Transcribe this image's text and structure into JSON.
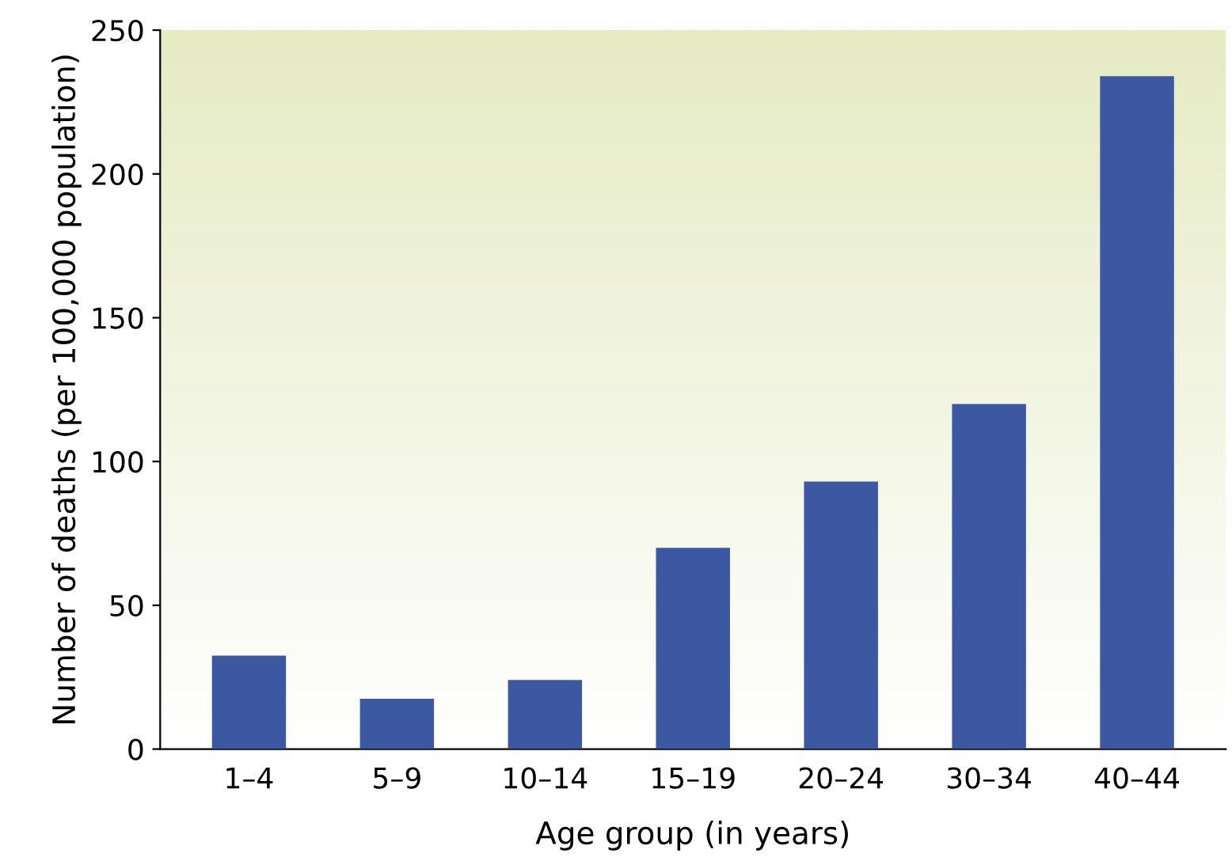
{
  "chart_data": {
    "type": "bar",
    "xlabel": "Age group (in years)",
    "ylabel": "Number of deaths (per 100,000 population)",
    "categories": [
      "1–4",
      "5–9",
      "10–14",
      "15–19",
      "20–24",
      "30–34",
      "40–44"
    ],
    "values": [
      32.5,
      17.5,
      24,
      70,
      93,
      120,
      234
    ],
    "color": "#3d58a3",
    "ylim": [
      0,
      250
    ],
    "yticks": [
      0,
      50,
      100,
      150,
      200,
      250
    ],
    "grid": false
  }
}
